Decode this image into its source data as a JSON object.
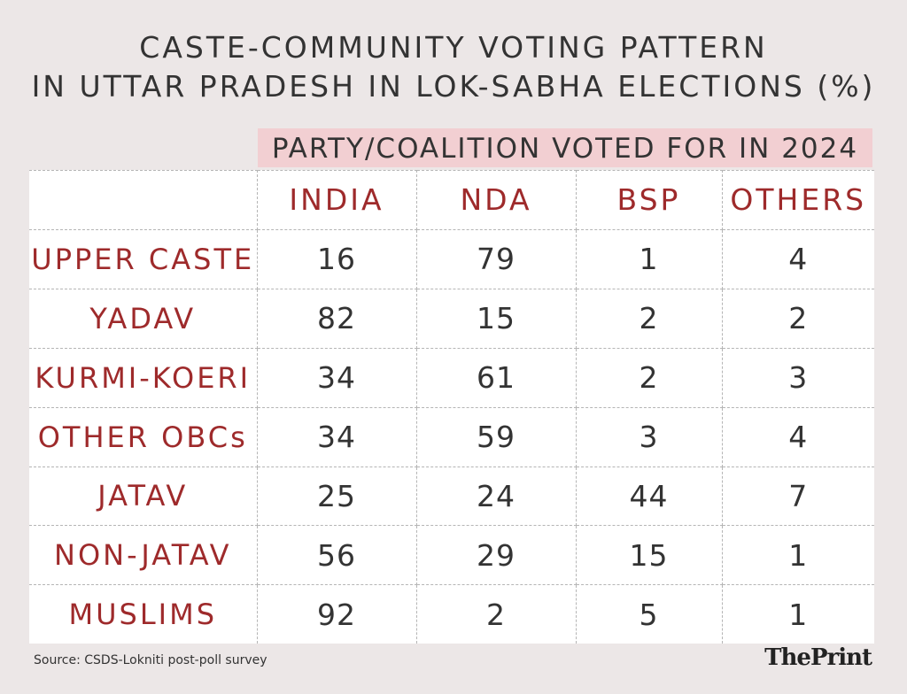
{
  "header": {
    "title": [
      "CASTE-COMMUNITY VOTING PATTERN",
      "IN UTTAR PRADESH IN LOK-SABHA ELECTIONS (%)"
    ],
    "subtitle": "PARTY/COALITION VOTED FOR IN 2024"
  },
  "table": {
    "columns": [
      "INDIA",
      "NDA",
      "BSP",
      "OTHERS"
    ],
    "rows": [
      [
        "UPPER CASTE",
        16,
        79,
        1,
        4
      ],
      [
        "YADAV",
        82,
        15,
        2,
        2
      ],
      [
        "KURMI-KOERI",
        34,
        61,
        2,
        3
      ],
      [
        "OTHER OBCs",
        34,
        59,
        3,
        4
      ],
      [
        "JATAV",
        25,
        24,
        44,
        7
      ],
      [
        "NON-JATAV",
        56,
        29,
        15,
        1
      ],
      [
        "MUSLIMS",
        92,
        2,
        5,
        1
      ]
    ]
  },
  "footer": {
    "source": "Source: CSDS-Lokniti post-poll survey",
    "logo": "ThePrint"
  }
}
